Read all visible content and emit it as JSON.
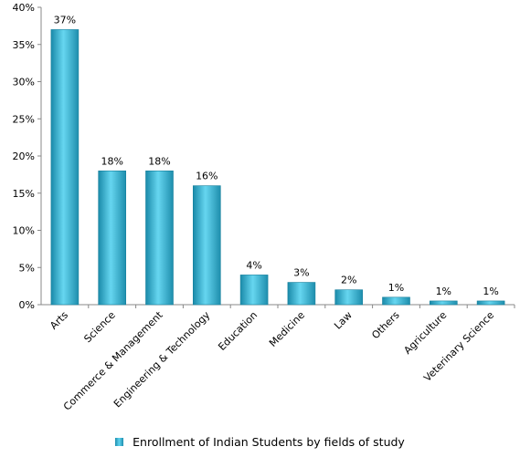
{
  "chart_data": {
    "type": "bar",
    "categories": [
      "Arts",
      "Science",
      "Commerce & Management",
      "Engineering & Technology",
      "Education",
      "Medicine",
      "Law",
      "Others",
      "Agriculture",
      "Veterinary Science"
    ],
    "series": [
      {
        "name": "Enrollment of Indian Students by fields of study",
        "values": [
          37,
          18,
          18,
          16,
          4,
          3,
          2,
          1,
          0.5,
          0.5
        ],
        "data_labels": [
          "37%",
          "18%",
          "18%",
          "16%",
          "4%",
          "3%",
          "2%",
          "1%",
          "1%",
          "1%"
        ]
      }
    ],
    "y_tick_labels": [
      "0%",
      "5%",
      "10%",
      "15%",
      "20%",
      "25%",
      "30%",
      "35%",
      "40%"
    ],
    "ylim": [
      0,
      40
    ],
    "y_tick_step": 5,
    "grid": false,
    "legend_position": "bottom",
    "colors": {
      "bar_dark": "#1a8aa9",
      "bar_light": "#66d6f0",
      "axis": "#888888"
    }
  }
}
